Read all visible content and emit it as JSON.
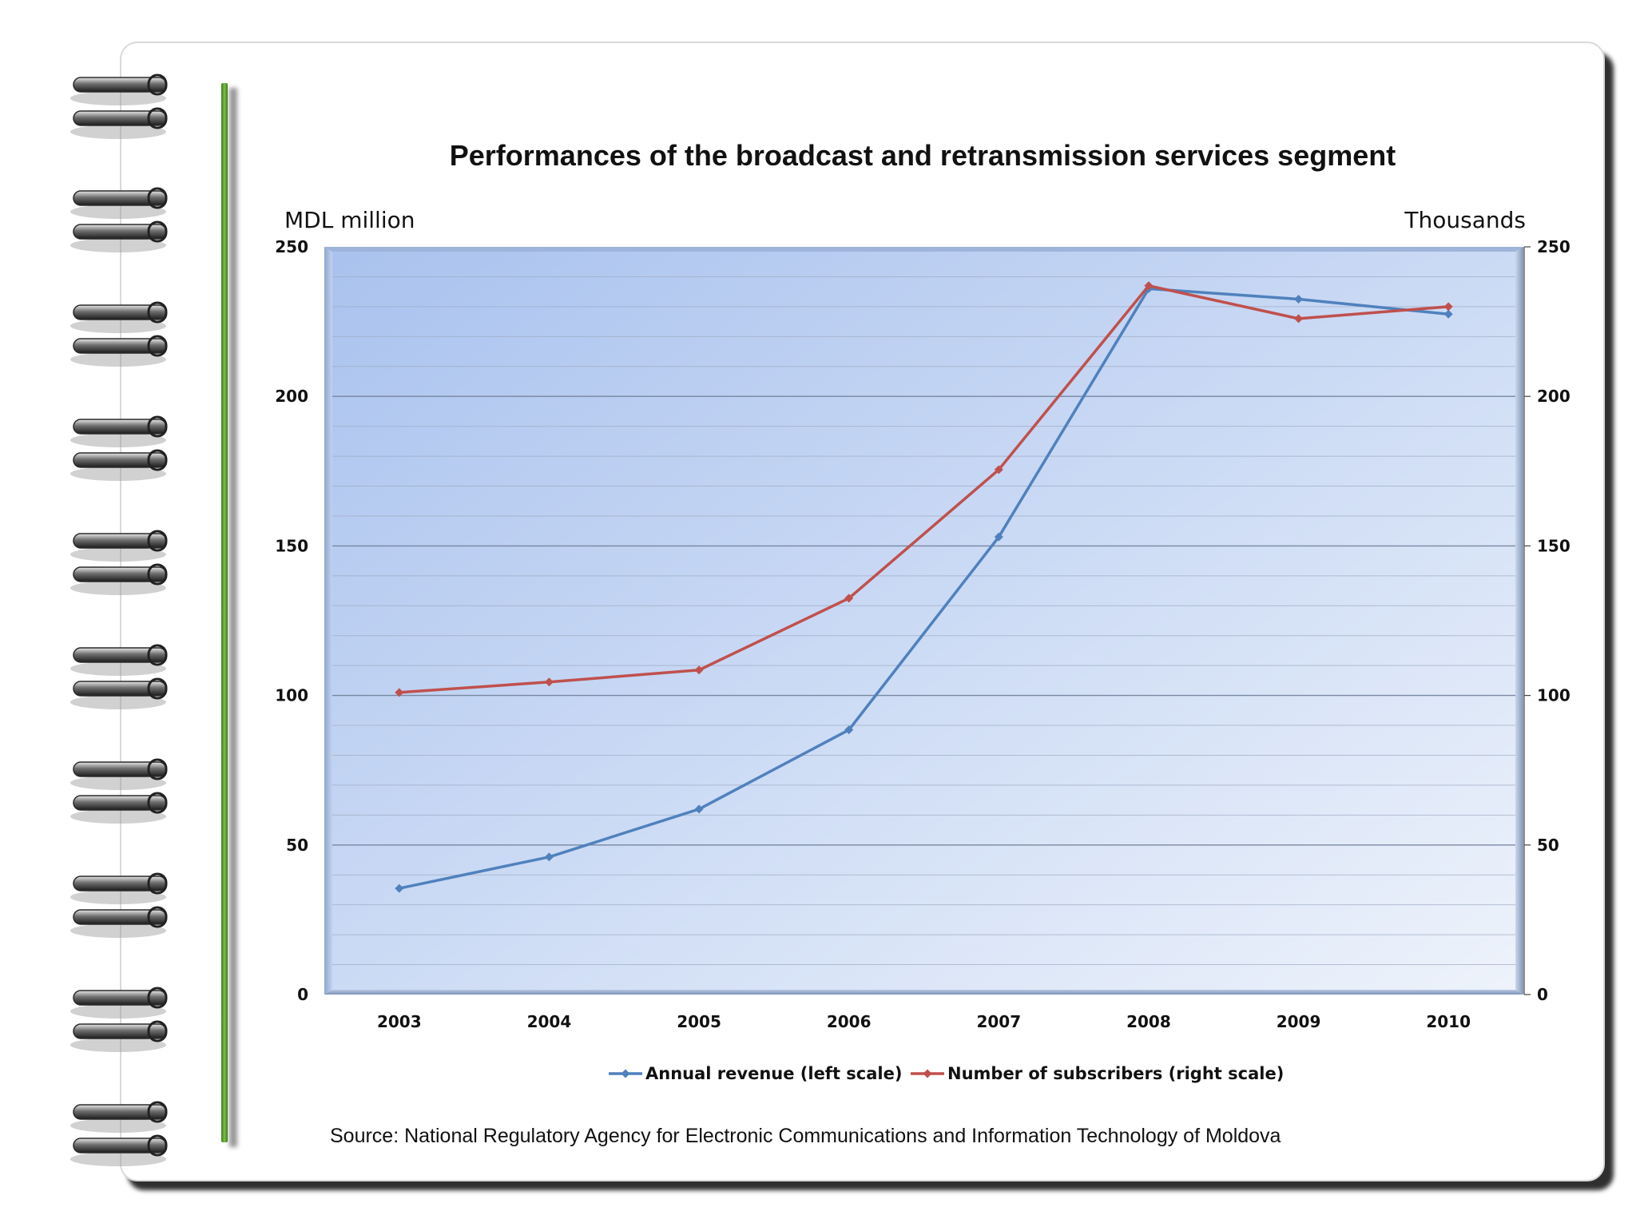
{
  "chart_data": {
    "type": "line",
    "title": "Performances of the broadcast and retransmission services segment",
    "categories": [
      "2003",
      "2004",
      "2005",
      "2006",
      "2007",
      "2008",
      "2009",
      "2010"
    ],
    "series": [
      {
        "name": "Annual revenue (left scale)",
        "axis": "left",
        "color": "#4f81bd",
        "values": [
          35.5,
          46,
          62,
          88.5,
          153,
          236,
          232.5,
          227.5
        ]
      },
      {
        "name": "Number of subscribers (right scale)",
        "axis": "right",
        "color": "#c0504d",
        "values": [
          101,
          104.5,
          108.5,
          132.5,
          175.5,
          237,
          226,
          230
        ]
      }
    ],
    "y_left_label": "MDL million",
    "y_right_label": "Thousands",
    "y_left_ticks": [
      "250",
      "200",
      "150",
      "100",
      "50",
      "0"
    ],
    "y_right_ticks": [
      "250",
      "200",
      "150",
      "100",
      "50",
      "0"
    ],
    "ylim_left": [
      0,
      250
    ],
    "ylim_right": [
      0,
      250
    ],
    "grid": true,
    "legend_position": "bottom",
    "source": "Source: National Regulatory Agency for Electronic Communications and Information Technology of Moldova"
  },
  "colors": {
    "plot_gradient_start": "#a9c2ee",
    "plot_gradient_end": "#eef3fb",
    "binder_green": "#5aa02c"
  }
}
